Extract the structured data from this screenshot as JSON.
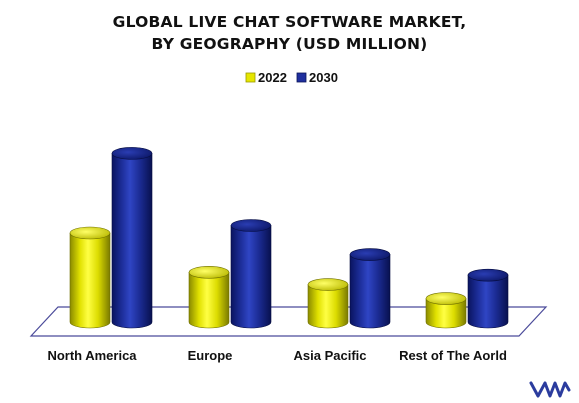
{
  "chart_data": {
    "type": "bar",
    "style": "3d-cylinder",
    "title_lines": [
      "GLOBAL LIVE CHAT SOFTWARE MARKET,",
      "BY GEOGRAPHY (USD MILLION)"
    ],
    "categories": [
      "North America",
      "Europe",
      "Asia Pacific",
      "Rest of The Aorld"
    ],
    "series": [
      {
        "name": "2022",
        "values": [
          95,
          53,
          40,
          25
        ],
        "color": "#e6e600"
      },
      {
        "name": "2030",
        "values": [
          180,
          103,
          72,
          50
        ],
        "color": "#1f2f9e"
      }
    ],
    "ylim": [
      0,
      190
    ],
    "grid": false,
    "legend_position": "top-center",
    "xlabel": "",
    "ylabel": ""
  },
  "brand": {
    "logo_name": "vmr-logo",
    "logo_color": "#2b3c9e"
  }
}
